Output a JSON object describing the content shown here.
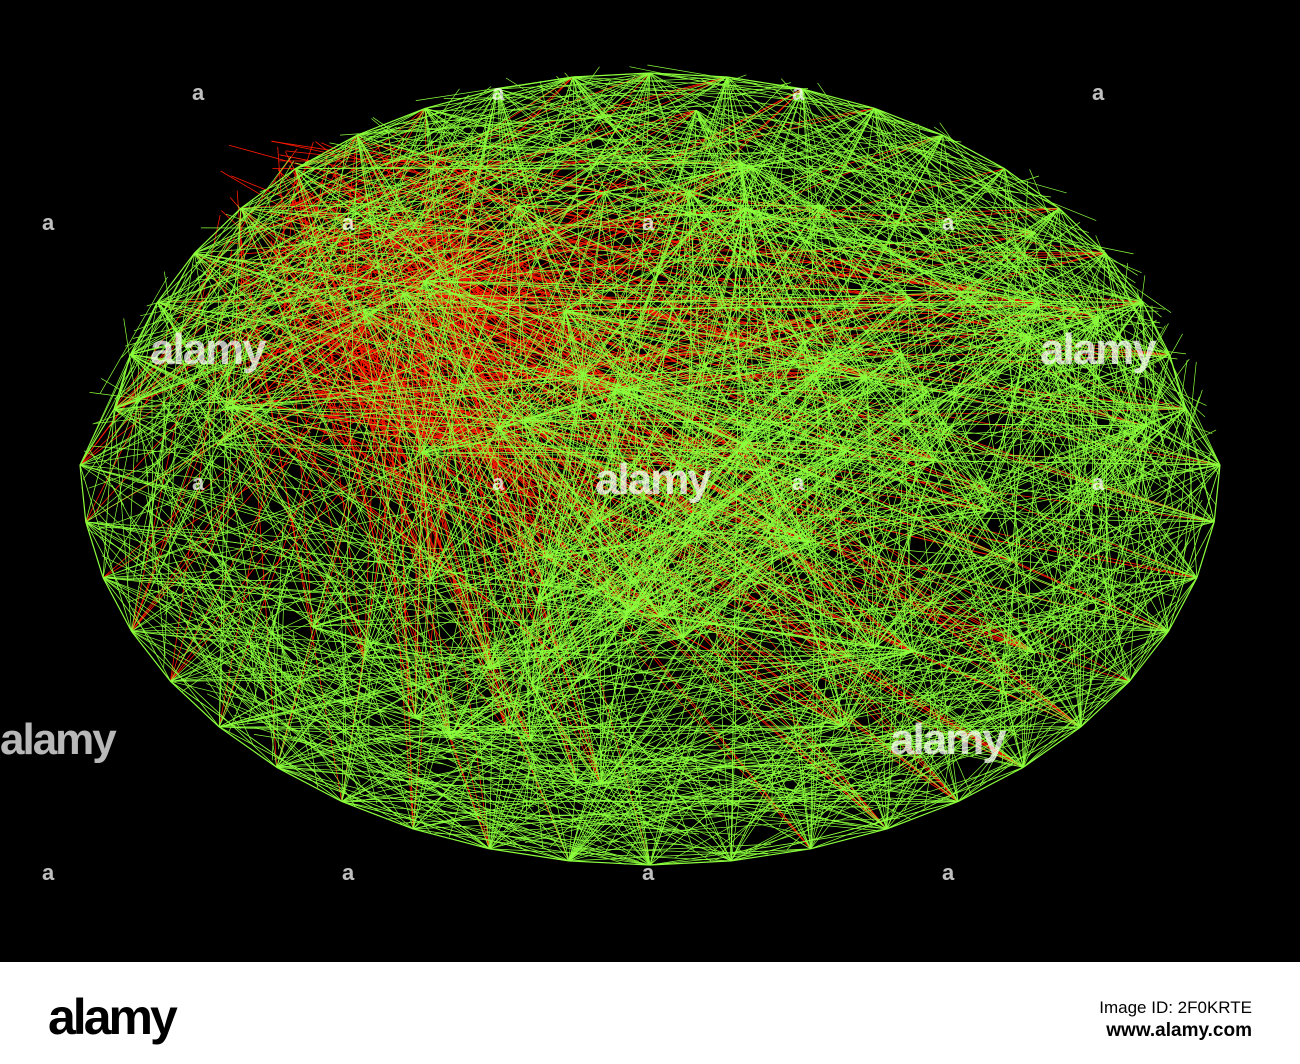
{
  "image": {
    "colors": {
      "background": "#000000",
      "wire_primary": "#8CFF3C",
      "wire_secondary": "#FF1A00"
    },
    "watermark": {
      "text": "alamy",
      "mark": "a"
    }
  },
  "footer": {
    "logo": "alamy",
    "image_id_label": "Image ID: 2F0KRTE",
    "site": "www.alamy.com"
  }
}
